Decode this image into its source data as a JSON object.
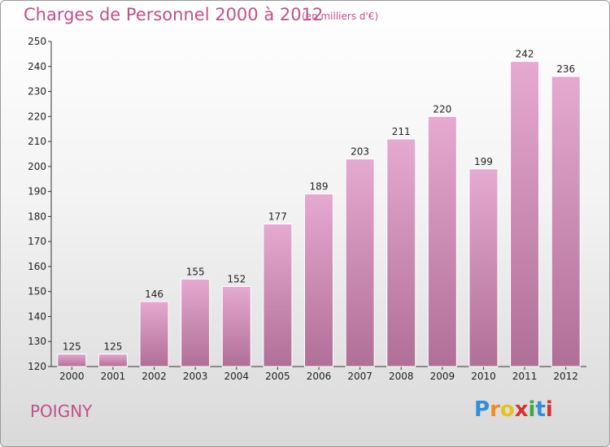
{
  "title": "Charges de Personnel 2000 à 2012",
  "subtitle": "(en milliers d'€)",
  "commune": "POIGNY",
  "logo": {
    "letters": [
      "P",
      "r",
      "o",
      "x",
      "i",
      "t",
      "i"
    ],
    "colors": [
      "#2f8fd8",
      "#f08c1e",
      "#e8c020",
      "#d83030",
      "#3aa84a",
      "#2f8fd8",
      "#d83030"
    ]
  },
  "colors": {
    "bar_top": "#e6a9cf",
    "bar_bottom": "#b06f96",
    "text": "#c0508a",
    "axis_text": "#222222"
  },
  "chart_data": {
    "type": "bar",
    "categories": [
      "2000",
      "2001",
      "2002",
      "2003",
      "2004",
      "2005",
      "2006",
      "2007",
      "2008",
      "2009",
      "2010",
      "2011",
      "2012"
    ],
    "values": [
      125,
      125,
      146,
      155,
      152,
      177,
      189,
      203,
      211,
      220,
      199,
      242,
      236
    ],
    "ylim": [
      120,
      250
    ],
    "yticks": [
      120,
      130,
      140,
      150,
      160,
      170,
      180,
      190,
      200,
      210,
      220,
      230,
      240,
      250
    ],
    "grid": false
  }
}
